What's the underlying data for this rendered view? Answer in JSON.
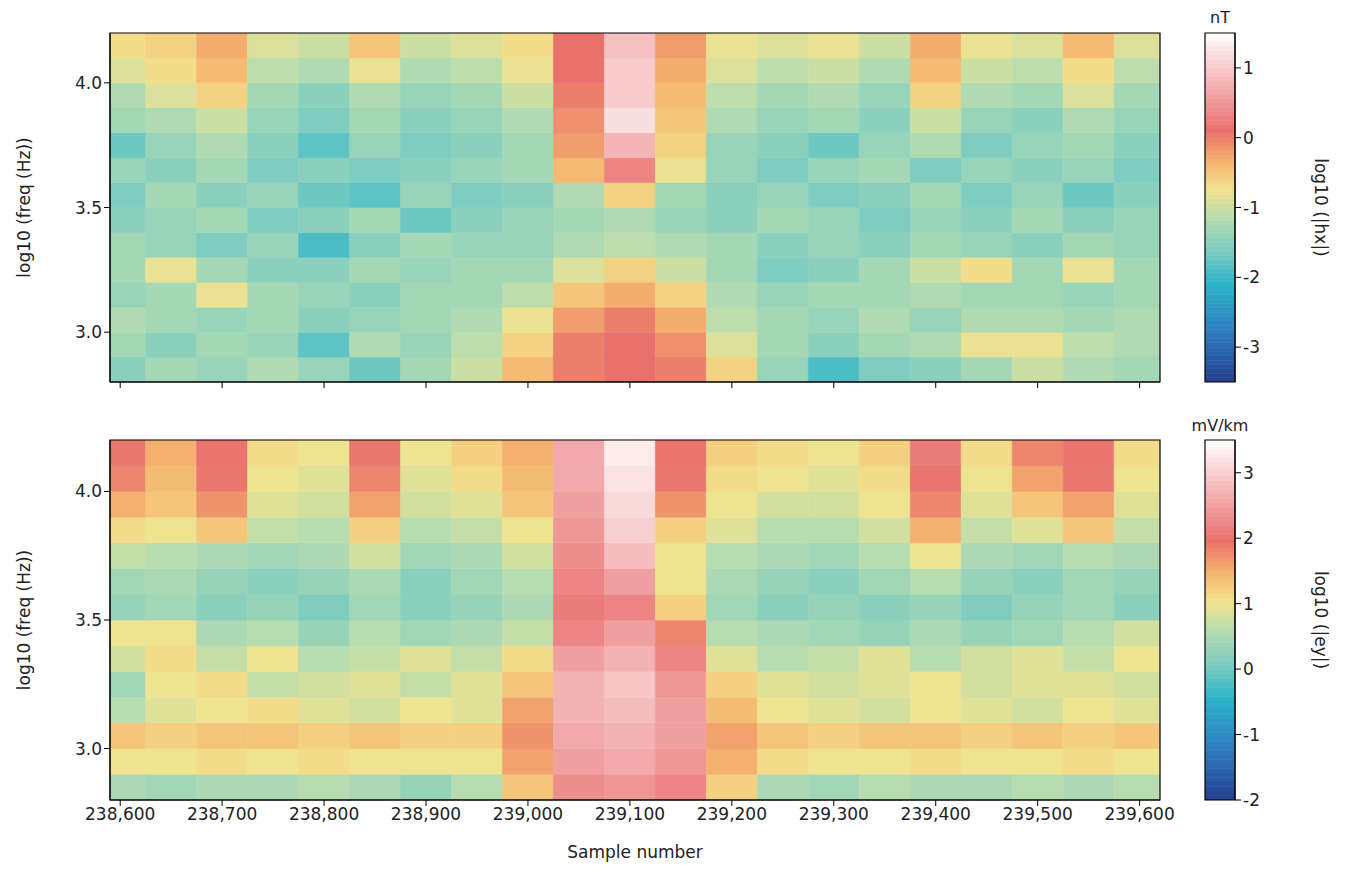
{
  "chart_data": [
    {
      "type": "heatmap",
      "ylabel": "log10 (freq (Hz))",
      "tick_labels": "y",
      "xlim": [
        238590,
        239620
      ],
      "xticks": [
        {
          "value": 238600,
          "label": "238,600"
        },
        {
          "value": 238700,
          "label": "238,700"
        },
        {
          "value": 238800,
          "label": "238,800"
        },
        {
          "value": 238900,
          "label": "238,900"
        },
        {
          "value": 239000,
          "label": "239,000"
        },
        {
          "value": 239100,
          "label": "239,100"
        },
        {
          "value": 239200,
          "label": "239,200"
        },
        {
          "value": 239300,
          "label": "239,300"
        },
        {
          "value": 239400,
          "label": "239,400"
        },
        {
          "value": 239500,
          "label": "239,500"
        },
        {
          "value": 239600,
          "label": "239,600"
        }
      ],
      "ylim": [
        2.8,
        4.2
      ],
      "yticks": [
        {
          "value": 3,
          "label": "3.0"
        },
        {
          "value": 3.5,
          "label": "3.5"
        },
        {
          "value": 4,
          "label": "4.0"
        }
      ],
      "x_bins": [
        238575,
        238625,
        238675,
        238725,
        238775,
        238825,
        238875,
        238925,
        238975,
        239025,
        239075,
        239125,
        239175,
        239225,
        239275,
        239325,
        239375,
        239425,
        239475,
        239525,
        239575,
        239625
      ],
      "y_bins": [
        2.8,
        2.9,
        3.0,
        3.1,
        3.2,
        3.3,
        3.4,
        3.5,
        3.6,
        3.7,
        3.8,
        3.9,
        4.0,
        4.1,
        4.2
      ],
      "cells": [
        [
          -1.5,
          -1.3,
          -1.4,
          -1.2,
          -1.4,
          -1.7,
          -1.3,
          -1.0,
          -0.4,
          0.0,
          0.1,
          0.0,
          -0.6,
          -1.4,
          -1.9,
          -1.6,
          -1.5,
          -1.3,
          -1.0,
          -1.2,
          -1.3
        ],
        [
          -1.3,
          -1.5,
          -1.3,
          -1.4,
          -1.8,
          -1.2,
          -1.4,
          -1.1,
          -0.6,
          0.0,
          0.1,
          -0.1,
          -0.9,
          -1.3,
          -1.5,
          -1.3,
          -1.2,
          -0.8,
          -0.8,
          -1.1,
          -1.2
        ],
        [
          -1.2,
          -1.3,
          -1.4,
          -1.3,
          -1.5,
          -1.4,
          -1.3,
          -1.2,
          -0.8,
          -0.2,
          0.0,
          -0.3,
          -1.1,
          -1.3,
          -1.4,
          -1.2,
          -1.4,
          -1.2,
          -1.2,
          -1.3,
          -1.2
        ],
        [
          -1.4,
          -1.3,
          -0.8,
          -1.3,
          -1.4,
          -1.5,
          -1.3,
          -1.3,
          -1.1,
          -0.5,
          -0.3,
          -0.6,
          -1.2,
          -1.4,
          -1.3,
          -1.3,
          -1.2,
          -1.3,
          -1.3,
          -1.4,
          -1.3
        ],
        [
          -1.3,
          -0.8,
          -1.3,
          -1.5,
          -1.5,
          -1.3,
          -1.4,
          -1.3,
          -1.3,
          -0.9,
          -0.6,
          -1.0,
          -1.3,
          -1.6,
          -1.5,
          -1.3,
          -1.0,
          -0.7,
          -1.3,
          -0.8,
          -1.3
        ],
        [
          -1.3,
          -1.4,
          -1.6,
          -1.4,
          -1.9,
          -1.5,
          -1.3,
          -1.4,
          -1.4,
          -1.2,
          -1.1,
          -1.2,
          -1.3,
          -1.5,
          -1.4,
          -1.5,
          -1.3,
          -1.4,
          -1.5,
          -1.3,
          -1.4
        ],
        [
          -1.5,
          -1.4,
          -1.3,
          -1.6,
          -1.5,
          -1.3,
          -1.7,
          -1.5,
          -1.4,
          -1.3,
          -1.2,
          -1.4,
          -1.5,
          -1.3,
          -1.4,
          -1.6,
          -1.4,
          -1.5,
          -1.3,
          -1.5,
          -1.4
        ],
        [
          -1.6,
          -1.3,
          -1.5,
          -1.4,
          -1.7,
          -1.8,
          -1.4,
          -1.6,
          -1.5,
          -1.2,
          -0.6,
          -1.3,
          -1.5,
          -1.4,
          -1.6,
          -1.5,
          -1.3,
          -1.6,
          -1.4,
          -1.7,
          -1.5
        ],
        [
          -1.4,
          -1.5,
          -1.3,
          -1.6,
          -1.5,
          -1.6,
          -1.5,
          -1.4,
          -1.3,
          -0.4,
          0.3,
          -0.8,
          -1.4,
          -1.6,
          -1.4,
          -1.3,
          -1.6,
          -1.4,
          -1.5,
          -1.4,
          -1.6
        ],
        [
          -1.7,
          -1.4,
          -1.2,
          -1.5,
          -1.8,
          -1.4,
          -1.6,
          -1.5,
          -1.3,
          -0.2,
          0.8,
          -0.6,
          -1.4,
          -1.5,
          -1.7,
          -1.4,
          -1.2,
          -1.6,
          -1.4,
          -1.3,
          -1.5
        ],
        [
          -1.3,
          -1.2,
          -1.0,
          -1.4,
          -1.6,
          -1.3,
          -1.5,
          -1.4,
          -1.2,
          -0.1,
          1.2,
          -0.5,
          -1.2,
          -1.4,
          -1.3,
          -1.5,
          -1.0,
          -1.4,
          -1.5,
          -1.2,
          -1.4
        ],
        [
          -1.2,
          -0.9,
          -0.6,
          -1.3,
          -1.5,
          -1.2,
          -1.4,
          -1.3,
          -1.0,
          0.0,
          1.0,
          -0.4,
          -1.1,
          -1.3,
          -1.2,
          -1.4,
          -0.6,
          -1.2,
          -1.3,
          -0.9,
          -1.3
        ],
        [
          -0.9,
          -0.7,
          -0.4,
          -1.1,
          -1.2,
          -0.8,
          -1.2,
          -1.1,
          -0.8,
          0.1,
          1.0,
          -0.3,
          -0.9,
          -1.1,
          -1.0,
          -1.2,
          -0.4,
          -1.0,
          -1.1,
          -0.7,
          -1.1
        ],
        [
          -0.7,
          -0.6,
          -0.3,
          -0.9,
          -1.0,
          -0.5,
          -1.0,
          -0.9,
          -0.7,
          0.1,
          0.9,
          -0.2,
          -0.8,
          -0.9,
          -0.8,
          -1.0,
          -0.3,
          -0.8,
          -0.9,
          -0.4,
          -0.9
        ]
      ],
      "colorbar": {
        "range": [
          -3.5,
          1.5
        ],
        "ticks": [
          -3,
          -2,
          -1,
          0,
          1
        ],
        "unit": "nT",
        "label": "log10 (|hx|)"
      }
    },
    {
      "type": "heatmap",
      "ylabel": "log10 (freq (Hz))",
      "xlabel": "Sample number",
      "xlim": [
        238590,
        239620
      ],
      "xticks": [
        {
          "value": 238600,
          "label": "238,600"
        },
        {
          "value": 238700,
          "label": "238,700"
        },
        {
          "value": 238800,
          "label": "238,800"
        },
        {
          "value": 238900,
          "label": "238,900"
        },
        {
          "value": 239000,
          "label": "239,000"
        },
        {
          "value": 239100,
          "label": "239,100"
        },
        {
          "value": 239200,
          "label": "239,200"
        },
        {
          "value": 239300,
          "label": "239,300"
        },
        {
          "value": 239400,
          "label": "239,400"
        },
        {
          "value": 239500,
          "label": "239,500"
        },
        {
          "value": 239600,
          "label": "239,600"
        }
      ],
      "ylim": [
        2.8,
        4.2
      ],
      "yticks": [
        {
          "value": 3,
          "label": "3.0"
        },
        {
          "value": 3.5,
          "label": "3.5"
        },
        {
          "value": 4,
          "label": "4.0"
        }
      ],
      "x_bins": [
        238575,
        238625,
        238675,
        238725,
        238775,
        238825,
        238875,
        238925,
        238975,
        239025,
        239075,
        239125,
        239175,
        239225,
        239275,
        239325,
        239375,
        239425,
        239475,
        239525,
        239575,
        239625
      ],
      "y_bins": [
        2.8,
        2.9,
        3.0,
        3.1,
        3.2,
        3.3,
        3.4,
        3.5,
        3.6,
        3.7,
        3.8,
        3.9,
        4.0,
        4.1,
        4.2
      ],
      "cells": [
        [
          0.5,
          0.4,
          0.5,
          0.5,
          0.6,
          0.5,
          0.3,
          0.6,
          1.3,
          2.3,
          2.4,
          2.2,
          1.2,
          0.5,
          0.4,
          0.6,
          0.5,
          0.5,
          0.6,
          0.5,
          0.6
        ],
        [
          1.0,
          1.0,
          1.1,
          1.0,
          1.1,
          1.0,
          1.0,
          1.0,
          1.6,
          2.5,
          2.6,
          2.4,
          1.5,
          1.1,
          1.0,
          1.0,
          1.1,
          1.0,
          1.0,
          1.1,
          1.0
        ],
        [
          1.3,
          1.2,
          1.3,
          1.3,
          1.2,
          1.3,
          1.2,
          1.2,
          1.7,
          2.6,
          2.7,
          2.5,
          1.6,
          1.3,
          1.2,
          1.3,
          1.3,
          1.2,
          1.3,
          1.2,
          1.3
        ],
        [
          0.6,
          0.9,
          1.0,
          1.1,
          0.9,
          0.8,
          1.0,
          0.9,
          1.6,
          2.7,
          2.8,
          2.5,
          1.4,
          1.0,
          0.9,
          0.8,
          1.0,
          0.9,
          0.8,
          1.0,
          0.9
        ],
        [
          0.4,
          1.0,
          1.1,
          0.7,
          0.8,
          0.9,
          0.7,
          0.9,
          1.3,
          2.7,
          2.9,
          2.4,
          1.2,
          0.9,
          0.8,
          0.9,
          1.0,
          0.8,
          0.9,
          0.9,
          0.8
        ],
        [
          0.8,
          1.1,
          0.7,
          1.0,
          0.6,
          0.7,
          0.9,
          0.7,
          1.1,
          2.5,
          2.7,
          2.2,
          0.9,
          0.6,
          0.7,
          0.9,
          0.6,
          0.8,
          0.9,
          0.7,
          1.0
        ],
        [
          1.0,
          1.0,
          0.5,
          0.6,
          0.3,
          0.6,
          0.4,
          0.5,
          0.7,
          2.2,
          2.5,
          1.8,
          0.6,
          0.5,
          0.4,
          0.3,
          0.5,
          0.3,
          0.4,
          0.6,
          0.8
        ],
        [
          0.3,
          0.4,
          0.2,
          0.3,
          0.1,
          0.4,
          0.2,
          0.3,
          0.5,
          2.1,
          2.2,
          1.2,
          0.4,
          0.2,
          0.3,
          0.2,
          0.3,
          0.1,
          0.3,
          0.4,
          0.2
        ],
        [
          0.4,
          0.5,
          0.3,
          0.2,
          0.3,
          0.5,
          0.2,
          0.4,
          0.6,
          2.2,
          2.5,
          1.0,
          0.5,
          0.3,
          0.2,
          0.4,
          0.6,
          0.3,
          0.2,
          0.4,
          0.3
        ],
        [
          0.7,
          0.6,
          0.5,
          0.4,
          0.5,
          0.8,
          0.4,
          0.5,
          0.8,
          2.3,
          2.8,
          1.0,
          0.6,
          0.5,
          0.4,
          0.6,
          1.0,
          0.5,
          0.4,
          0.6,
          0.5
        ],
        [
          1.1,
          1.0,
          1.3,
          0.7,
          0.6,
          1.2,
          0.6,
          0.7,
          1.0,
          2.4,
          3.0,
          1.2,
          0.9,
          0.6,
          0.6,
          0.8,
          1.5,
          0.7,
          0.9,
          1.3,
          0.7
        ],
        [
          1.5,
          1.3,
          1.7,
          0.9,
          0.8,
          1.6,
          0.8,
          0.9,
          1.3,
          2.5,
          3.1,
          1.7,
          1.0,
          0.8,
          0.8,
          1.0,
          1.8,
          0.9,
          1.3,
          1.6,
          0.9
        ],
        [
          1.8,
          1.4,
          1.9,
          1.0,
          0.9,
          1.8,
          0.9,
          1.1,
          1.4,
          2.6,
          3.2,
          1.9,
          1.1,
          1.0,
          0.9,
          1.1,
          2.0,
          1.0,
          1.6,
          1.9,
          1.0
        ],
        [
          1.9,
          1.5,
          2.0,
          1.1,
          1.0,
          1.9,
          1.0,
          1.2,
          1.5,
          2.6,
          3.3,
          2.0,
          1.2,
          1.1,
          1.0,
          1.2,
          2.1,
          1.1,
          1.8,
          2.0,
          1.1
        ]
      ],
      "colorbar": {
        "range": [
          -2,
          3.5
        ],
        "ticks": [
          -2,
          -1,
          0,
          1,
          2,
          3
        ],
        "unit": "mV/km",
        "label": "log10 (|ey|)"
      }
    }
  ]
}
